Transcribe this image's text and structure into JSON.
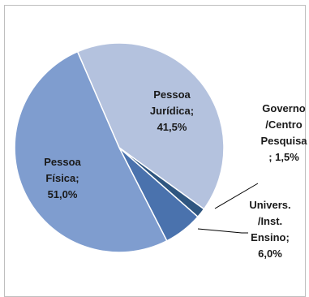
{
  "chart_data": {
    "type": "pie",
    "title": "",
    "slices": [
      {
        "label_lines": [
          "Pessoa",
          "Jurídica;",
          "41,5%"
        ],
        "category": "Pessoa Jurídica",
        "value": 41.5,
        "color": "#b4c2de"
      },
      {
        "label_lines": [
          "Governo",
          "/Centro",
          "Pesquisa",
          "; 1,5%"
        ],
        "category": "Governo/Centro Pesquisa",
        "value": 1.5,
        "color": "#2f5680"
      },
      {
        "label_lines": [
          "Univers.",
          "/Inst.",
          "Ensino;",
          "6,0%"
        ],
        "category": "Univers./Inst. Ensino",
        "value": 6.0,
        "color": "#4a72ad"
      },
      {
        "label_lines": [
          "Pessoa",
          "Física;",
          "51,0%"
        ],
        "category": "Pessoa Física",
        "value": 51.0,
        "color": "#7f9dcf"
      }
    ],
    "label_colors": {
      "inside": "#1a1a1a",
      "outside": "#1a1a1a"
    },
    "leader_line_color": "#000000"
  }
}
